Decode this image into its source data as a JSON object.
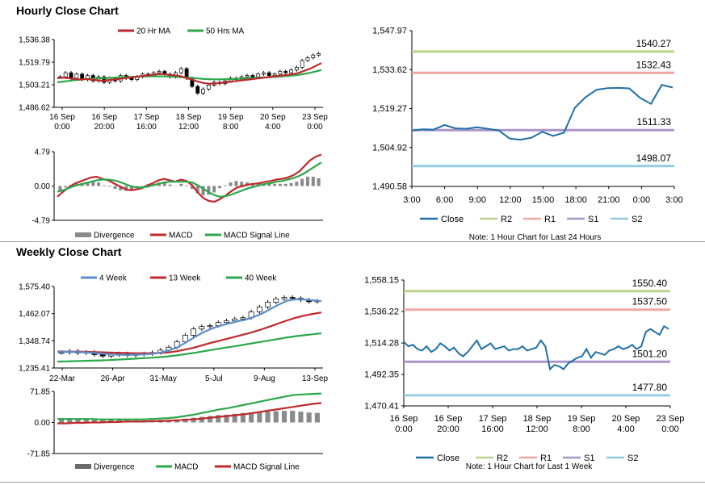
{
  "sections": {
    "hourly_title": "Hourly Close Chart",
    "weekly_title": "Weekly Close Chart"
  },
  "colors": {
    "ma_fast": "#c0282a",
    "ma_slow": "#2aa84a",
    "weekly_4wk": "#5b8ecb",
    "close": "#1f6fa8",
    "r2": "#b9d48a",
    "r1": "#f0a7a3",
    "s1": "#a996c8",
    "s2": "#93cde0",
    "divergence": "#8a8a8a"
  },
  "chart_data": [
    {
      "id": "hourly_price",
      "type": "candlestick",
      "legend": [
        "20 Hr MA",
        "50 Hrs MA"
      ],
      "y_ticks": [
        "1,536.38",
        "1,519.79",
        "1,503.21",
        "1,486.62"
      ],
      "y_tick_values": [
        1536.38,
        1519.79,
        1503.21,
        1486.62
      ],
      "ylim": [
        1486.62,
        1536.38
      ],
      "x_ticks": [
        [
          "16 Sep",
          "0:00"
        ],
        [
          "16 Sep",
          "20:00"
        ],
        [
          "17 Sep",
          "16:00"
        ],
        [
          "18 Sep",
          "12:00"
        ],
        [
          "19 Sep",
          "8:00"
        ],
        [
          "20 Sep",
          "4:00"
        ],
        [
          "23 Sep",
          "0:00"
        ]
      ],
      "close": [
        1509,
        1512,
        1508,
        1511,
        1507,
        1510,
        1506,
        1509,
        1505,
        1508,
        1506,
        1510,
        1508,
        1507,
        1509,
        1511,
        1510,
        1512,
        1513,
        1511,
        1509,
        1512,
        1515,
        1508,
        1502,
        1497,
        1500,
        1503,
        1505,
        1504,
        1506,
        1508,
        1507,
        1509,
        1510,
        1509,
        1511,
        1512,
        1510,
        1511,
        1513,
        1512,
        1514,
        1516,
        1521,
        1523,
        1525,
        1526
      ],
      "ma20": [
        1508,
        1508.5,
        1508,
        1507.5,
        1507,
        1507.5,
        1507,
        1506.5,
        1506,
        1506.5,
        1507,
        1507.5,
        1508,
        1508.5,
        1509,
        1509.5,
        1510,
        1510.5,
        1511,
        1511,
        1510.5,
        1510,
        1509.5,
        1508,
        1507,
        1505.5,
        1504.5,
        1504,
        1504,
        1504.5,
        1505,
        1505.5,
        1506,
        1506.5,
        1507,
        1507.5,
        1508,
        1508.5,
        1509,
        1509.5,
        1510,
        1510.5,
        1511,
        1512,
        1513.5,
        1515,
        1517,
        1519
      ],
      "ma50": [
        1505,
        1505.5,
        1506,
        1506.5,
        1507,
        1507.3,
        1507.6,
        1507.8,
        1508,
        1508.2,
        1508.4,
        1508.6,
        1508.8,
        1509,
        1509.1,
        1509.2,
        1509.3,
        1509.4,
        1509.4,
        1509.3,
        1509.2,
        1509,
        1508.8,
        1508.5,
        1508.2,
        1507.8,
        1507.5,
        1507.3,
        1507.2,
        1507.2,
        1507.3,
        1507.4,
        1507.6,
        1507.8,
        1508,
        1508.2,
        1508.4,
        1508.6,
        1508.8,
        1509,
        1509.3,
        1509.6,
        1510,
        1510.5,
        1511.2,
        1512,
        1513,
        1514
      ]
    },
    {
      "id": "hourly_macd",
      "type": "macd",
      "legend": [
        "Divergence",
        "MACD",
        "MACD Signal Line"
      ],
      "y_ticks": [
        "4.79",
        "0.00",
        "-4.79"
      ],
      "y_tick_values": [
        4.79,
        0,
        -4.79
      ],
      "ylim": [
        -4.79,
        4.79
      ],
      "macd": [
        -1.5,
        -0.8,
        -0.2,
        0.3,
        0.6,
        0.9,
        1.2,
        1.3,
        1.0,
        0.8,
        0.4,
        0.0,
        -0.4,
        -0.6,
        -0.5,
        -0.3,
        0.1,
        0.4,
        0.8,
        1.0,
        0.8,
        0.6,
        0.9,
        0.7,
        0.1,
        -0.9,
        -1.7,
        -2.1,
        -2.2,
        -1.8,
        -1.3,
        -0.7,
        -0.2,
        0.0,
        0.2,
        0.3,
        0.4,
        0.6,
        0.7,
        0.9,
        1.0,
        1.2,
        1.5,
        2.0,
        2.8,
        3.6,
        4.1,
        4.4
      ],
      "signal": [
        -0.8,
        -0.6,
        -0.3,
        0.0,
        0.2,
        0.4,
        0.6,
        0.8,
        0.9,
        0.9,
        0.8,
        0.6,
        0.3,
        0.0,
        -0.2,
        -0.2,
        -0.1,
        0.1,
        0.3,
        0.5,
        0.6,
        0.6,
        0.6,
        0.6,
        0.5,
        0.1,
        -0.4,
        -0.9,
        -1.3,
        -1.5,
        -1.4,
        -1.2,
        -0.9,
        -0.6,
        -0.3,
        -0.1,
        0.1,
        0.3,
        0.4,
        0.6,
        0.7,
        0.9,
        1.1,
        1.4,
        1.8,
        2.3,
        2.8,
        3.3
      ]
    },
    {
      "id": "hourly_levels",
      "type": "line",
      "x_ticks": [
        "3:00",
        "6:00",
        "9:00",
        "12:00",
        "15:00",
        "18:00",
        "21:00",
        "0:00",
        "3:00"
      ],
      "y_ticks": [
        "1,547.97",
        "1,533.62",
        "1,519.27",
        "1,504.92",
        "1,490.58"
      ],
      "y_tick_values": [
        1547.97,
        1533.62,
        1519.27,
        1504.92,
        1490.58
      ],
      "ylim": [
        1490.58,
        1547.97
      ],
      "close": [
        1511.2,
        1511.6,
        1511.5,
        1513.2,
        1512.0,
        1511.8,
        1512.4,
        1511.8,
        1511.2,
        1508.2,
        1507.8,
        1508.5,
        1510.7,
        1509.2,
        1510.4,
        1519.6,
        1523.5,
        1526.2,
        1526.8,
        1526.9,
        1526.7,
        1523.2,
        1521.0,
        1528.0,
        1527.0
      ],
      "levels": [
        {
          "name": "R2",
          "value": 1540.27,
          "label": "1540.27"
        },
        {
          "name": "R1",
          "value": 1532.43,
          "label": "1532.43"
        },
        {
          "name": "S1",
          "value": 1511.33,
          "label": "1511.33"
        },
        {
          "name": "S2",
          "value": 1498.07,
          "label": "1498.07"
        }
      ],
      "legend": [
        "Close",
        "R2",
        "R1",
        "S1",
        "S2"
      ],
      "note": "Note: 1 Hour Chart for Last 24 Hours"
    },
    {
      "id": "weekly_price",
      "type": "candlestick",
      "legend": [
        "4 Week",
        "13 Week",
        "40 Week"
      ],
      "y_ticks": [
        "1,575.40",
        "1,462.07",
        "1,348.74",
        "1,235.41"
      ],
      "y_tick_values": [
        1575.4,
        1462.07,
        1348.74,
        1235.41
      ],
      "ylim": [
        1235.41,
        1575.4
      ],
      "x_ticks": [
        "22-Mar",
        "26-Apr",
        "31-May",
        "5-Jul",
        "9-Aug",
        "13-Sep"
      ],
      "close": [
        1300,
        1306,
        1298,
        1302,
        1291,
        1285,
        1290,
        1295,
        1288,
        1292,
        1295,
        1300,
        1310,
        1322,
        1345,
        1372,
        1398,
        1408,
        1412,
        1425,
        1432,
        1440,
        1445,
        1470,
        1490,
        1510,
        1524,
        1530,
        1526,
        1519,
        1512,
        1515
      ],
      "ma4": [
        1302,
        1303,
        1302,
        1301,
        1299,
        1296,
        1293,
        1291,
        1290,
        1291,
        1292,
        1294,
        1299,
        1307,
        1320,
        1340,
        1362,
        1382,
        1398,
        1410,
        1420,
        1429,
        1436,
        1447,
        1462,
        1481,
        1500,
        1516,
        1522,
        1521,
        1518,
        1514
      ],
      "ma13": [
        1304,
        1304,
        1303,
        1303,
        1302,
        1301,
        1300,
        1299,
        1298,
        1297,
        1297,
        1297,
        1298,
        1300,
        1305,
        1312,
        1320,
        1330,
        1340,
        1349,
        1358,
        1367,
        1376,
        1386,
        1397,
        1409,
        1422,
        1434,
        1445,
        1454,
        1461,
        1467
      ],
      "ma40": [
        1262,
        1263,
        1264,
        1265,
        1266,
        1267,
        1268,
        1270,
        1272,
        1274,
        1276,
        1278,
        1281,
        1284,
        1288,
        1293,
        1298,
        1304,
        1310,
        1316,
        1322,
        1327,
        1333,
        1339,
        1345,
        1351,
        1357,
        1363,
        1368,
        1372,
        1376,
        1380
      ]
    },
    {
      "id": "weekly_macd",
      "type": "macd",
      "legend": [
        "Divergence",
        "MACD",
        "MACD Signal Line"
      ],
      "y_ticks": [
        "71.85",
        "0.00",
        "-71.85"
      ],
      "y_tick_values": [
        71.85,
        0,
        -71.85
      ],
      "ylim": [
        -71.85,
        71.85
      ],
      "macd": [
        8,
        8,
        8,
        8,
        8,
        7,
        7,
        7,
        7,
        7,
        7,
        8,
        9,
        10,
        12,
        15,
        18,
        22,
        26,
        30,
        33,
        37,
        41,
        45,
        49,
        53,
        57,
        61,
        64,
        65,
        66,
        67
      ],
      "signal": [
        -2,
        -2,
        -1,
        -1,
        0,
        0,
        1,
        1,
        2,
        2,
        2,
        3,
        3,
        4,
        5,
        6,
        7,
        9,
        11,
        13,
        15,
        17,
        19,
        22,
        25,
        28,
        31,
        34,
        37,
        40,
        43,
        45
      ]
    },
    {
      "id": "weekly_levels",
      "type": "line",
      "x_ticks": [
        [
          "16 Sep",
          "0:00"
        ],
        [
          "16 Sep",
          "20:00"
        ],
        [
          "17 Sep",
          "16:00"
        ],
        [
          "18 Sep",
          "12:00"
        ],
        [
          "19 Sep",
          "8:00"
        ],
        [
          "20 Sep",
          "4:00"
        ],
        [
          "23 Sep",
          "0:00"
        ]
      ],
      "y_ticks": [
        "1,558.15",
        "1,536.22",
        "1,514.28",
        "1,492.35",
        "1,470.41"
      ],
      "y_tick_values": [
        1558.15,
        1536.22,
        1514.28,
        1492.35,
        1470.41
      ],
      "ylim": [
        1470.41,
        1558.15
      ],
      "close": [
        1515,
        1512,
        1513,
        1510,
        1509,
        1512,
        1508,
        1510,
        1514,
        1512,
        1509,
        1511,
        1507,
        1505,
        1508,
        1512,
        1516,
        1510,
        1512,
        1514,
        1510,
        1511,
        1512,
        1509,
        1510,
        1510,
        1512,
        1509,
        1510,
        1511,
        1516,
        1512,
        1496,
        1499,
        1498,
        1496,
        1500,
        1502,
        1504,
        1505,
        1510,
        1504,
        1508,
        1507,
        1506,
        1509,
        1510,
        1512,
        1510,
        1511,
        1513,
        1510,
        1512,
        1522,
        1524,
        1522,
        1520,
        1526,
        1524
      ],
      "levels": [
        {
          "name": "R2",
          "value": 1550.4,
          "label": "1550.40"
        },
        {
          "name": "R1",
          "value": 1537.5,
          "label": "1537.50"
        },
        {
          "name": "S1",
          "value": 1501.2,
          "label": "1501.20"
        },
        {
          "name": "S2",
          "value": 1477.8,
          "label": "1477.80"
        }
      ],
      "legend": [
        "Close",
        "R2",
        "R1",
        "S1",
        "S2"
      ],
      "note": "Note: 1 Hour Chart for Last 1 Week"
    }
  ]
}
